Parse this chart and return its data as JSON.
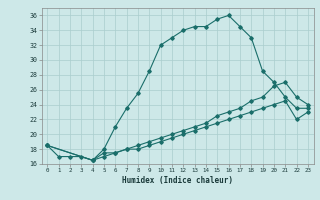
{
  "xlabel": "Humidex (Indice chaleur)",
  "background_color": "#cde8e8",
  "grid_color": "#aacece",
  "line_color": "#1a6e6a",
  "xlim": [
    -0.5,
    23.5
  ],
  "ylim": [
    16,
    37
  ],
  "xticks": [
    0,
    1,
    2,
    3,
    4,
    5,
    6,
    7,
    8,
    9,
    10,
    11,
    12,
    13,
    14,
    15,
    16,
    17,
    18,
    19,
    20,
    21,
    22,
    23
  ],
  "yticks": [
    16,
    18,
    20,
    22,
    24,
    26,
    28,
    30,
    32,
    34,
    36
  ],
  "curve1_x": [
    0,
    1,
    2,
    3,
    4,
    5,
    6,
    7,
    8,
    9,
    10,
    11,
    12,
    13,
    14,
    15,
    16,
    17,
    18,
    19,
    20,
    21,
    22,
    23
  ],
  "curve1_y": [
    18.5,
    17.0,
    17.0,
    17.0,
    16.5,
    18.0,
    21.0,
    23.5,
    25.5,
    28.5,
    32.0,
    33.0,
    34.0,
    34.5,
    34.5,
    35.5,
    36.0,
    34.5,
    33.0,
    28.5,
    27.0,
    25.0,
    23.5,
    23.5
  ],
  "curve2_x": [
    0,
    4,
    5,
    6,
    7,
    8,
    9,
    10,
    11,
    12,
    13,
    14,
    15,
    16,
    17,
    18,
    19,
    20,
    21,
    22,
    23
  ],
  "curve2_y": [
    18.5,
    16.5,
    17.5,
    17.5,
    18.0,
    18.5,
    19.0,
    19.5,
    20.0,
    20.5,
    21.0,
    21.5,
    22.5,
    23.0,
    23.5,
    24.5,
    25.0,
    26.5,
    27.0,
    25.0,
    24.0
  ],
  "curve3_x": [
    0,
    4,
    5,
    6,
    7,
    8,
    9,
    10,
    11,
    12,
    13,
    14,
    15,
    16,
    17,
    18,
    19,
    20,
    21,
    22,
    23
  ],
  "curve3_y": [
    18.5,
    16.5,
    17.0,
    17.5,
    18.0,
    18.0,
    18.5,
    19.0,
    19.5,
    20.0,
    20.5,
    21.0,
    21.5,
    22.0,
    22.5,
    23.0,
    23.5,
    24.0,
    24.5,
    22.0,
    23.0
  ]
}
